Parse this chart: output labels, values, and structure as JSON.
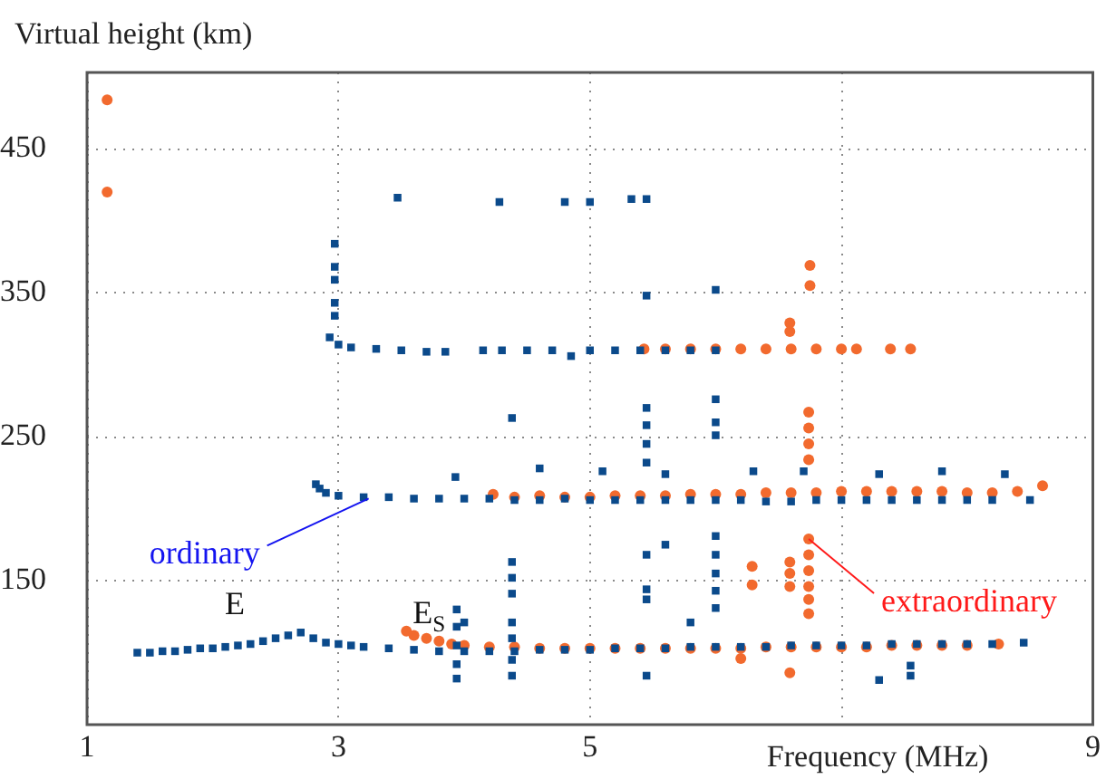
{
  "chart_data": {
    "type": "scatter",
    "xlabel": "Frequency (MHz)",
    "ylabel": "Virtual height (km)",
    "xlim": [
      1,
      9
    ],
    "xticks": [
      1,
      3,
      5,
      {
        "value": 7,
        "label": null
      },
      9
    ],
    "ylim": [
      50,
      503
    ],
    "yticks": [
      150,
      250,
      350,
      450
    ],
    "grid": true,
    "legend": false,
    "annotations": [
      {
        "text": "ordinary",
        "x": 3.24,
        "y": 207
      },
      {
        "text": "extraordinary",
        "x": 6.74,
        "y": 179
      },
      "E",
      "E$_{S}$"
    ],
    "series": [
      {
        "color": "#0b4a8b",
        "marker": "square",
        "x": [
          1.4,
          1.5,
          1.6,
          1.7,
          1.8,
          1.9,
          2.0,
          2.1,
          2.2,
          2.3,
          2.4,
          2.5,
          2.6,
          2.7,
          2.8,
          2.9,
          3.0,
          3.1,
          3.2,
          3.4,
          3.6,
          3.8,
          4.0,
          4.2,
          4.4,
          4.6,
          4.8,
          5.0,
          5.2,
          5.4,
          5.6,
          5.8,
          6.0,
          6.2,
          6.4,
          6.6,
          6.8,
          7.0,
          7.2,
          7.4,
          7.6,
          7.8,
          8.0,
          8.2,
          8.45,
          3.94,
          3.94,
          3.94,
          3.94,
          3.94,
          4.0,
          4.38,
          4.38,
          4.38,
          4.38,
          5.45,
          7.3,
          7.55,
          7.55,
          5.8,
          4.38,
          4.38,
          4.38,
          5.45,
          5.45,
          5.45,
          5.6,
          6.0,
          6.0,
          6.0,
          6.0,
          6.0,
          2.82,
          2.85,
          2.9,
          3.0,
          3.2,
          3.4,
          3.6,
          3.8,
          4.0,
          4.2,
          4.4,
          4.6,
          4.8,
          5.0,
          5.2,
          5.4,
          5.6,
          5.8,
          6.0,
          6.2,
          6.4,
          6.6,
          6.8,
          7.0,
          7.2,
          7.4,
          7.6,
          7.8,
          8.0,
          8.2,
          8.5,
          3.93,
          4.6,
          5.1,
          5.6,
          6.3,
          6.7,
          7.3,
          7.8,
          8.3,
          4.38,
          5.45,
          5.45,
          5.45,
          5.45,
          6.0,
          6.0,
          6.0,
          2.93,
          3.0,
          3.1,
          3.3,
          3.5,
          3.7,
          3.85,
          4.15,
          4.3,
          4.5,
          4.7,
          4.85,
          5.0,
          5.2,
          5.4,
          5.6,
          5.8,
          6.0,
          2.97,
          2.97,
          2.97,
          2.97,
          2.97,
          5.45,
          6.0,
          3.47,
          4.28,
          4.8,
          5.0,
          5.33,
          5.45
        ],
        "values": [
          100,
          100,
          101,
          101,
          102,
          103,
          103,
          104,
          105,
          106,
          108,
          110,
          112,
          114,
          110,
          107,
          106,
          105,
          104,
          103,
          102,
          101,
          101,
          101,
          101,
          102,
          102,
          102,
          103,
          103,
          103,
          104,
          104,
          104,
          104,
          105,
          105,
          105,
          105,
          106,
          106,
          106,
          106,
          106,
          107,
          130,
          118,
          105,
          92,
          82,
          121,
          121,
          110,
          95,
          84,
          84,
          81,
          91,
          84,
          121,
          163,
          152,
          141,
          168,
          144,
          137,
          175,
          181,
          168,
          155,
          143,
          131,
          217,
          214,
          211,
          209,
          208,
          208,
          207,
          207,
          207,
          207,
          206,
          206,
          207,
          206,
          206,
          206,
          206,
          206,
          206,
          206,
          205,
          205,
          206,
          206,
          206,
          206,
          206,
          206,
          206,
          206,
          206,
          222,
          228,
          226,
          224,
          226,
          226,
          224,
          226,
          224,
          263,
          270,
          258,
          245,
          232,
          276,
          260,
          251,
          319,
          314,
          312,
          311,
          310,
          309,
          309,
          310,
          310,
          310,
          310,
          306,
          310,
          310,
          310,
          310,
          310,
          310,
          334,
          343,
          359,
          368,
          384,
          348,
          352,
          416,
          413,
          413,
          413,
          415,
          415
        ]
      },
      {
        "color": "#f26a2e",
        "marker": "circle",
        "x": [
          1.16,
          1.16,
          3.54,
          3.6,
          3.7,
          3.8,
          3.9,
          4.0,
          4.2,
          4.4,
          4.6,
          4.8,
          5.0,
          5.2,
          5.4,
          5.6,
          5.8,
          6.0,
          6.2,
          6.4,
          6.6,
          6.8,
          7.0,
          7.2,
          7.4,
          7.6,
          7.8,
          8.0,
          8.25,
          6.59,
          6.2,
          6.74,
          6.74,
          6.74,
          6.74,
          6.74,
          6.74,
          6.59,
          6.59,
          6.59,
          6.29,
          6.29,
          4.23,
          4.4,
          4.6,
          4.8,
          5.0,
          5.2,
          5.4,
          5.6,
          5.8,
          6.0,
          6.2,
          6.4,
          6.6,
          6.8,
          7.0,
          7.2,
          7.4,
          7.6,
          7.8,
          8.0,
          8.2,
          8.4,
          8.6,
          6.74,
          6.74,
          6.74,
          6.74,
          5.43,
          5.6,
          5.8,
          6.0,
          6.2,
          6.4,
          6.6,
          6.8,
          7.0,
          7.12,
          7.39,
          7.55,
          6.59,
          6.59,
          6.75,
          6.75
        ],
        "values": [
          484,
          420,
          115,
          112,
          110,
          108,
          106,
          105,
          104,
          104,
          103,
          103,
          103,
          103,
          103,
          103,
          103,
          103,
          103,
          104,
          104,
          104,
          104,
          104,
          105,
          105,
          105,
          105,
          106,
          86,
          96,
          179,
          168,
          157,
          146,
          137,
          127,
          163,
          155,
          146,
          160,
          147,
          210,
          208,
          209,
          208,
          208,
          209,
          209,
          209,
          210,
          210,
          210,
          211,
          211,
          211,
          212,
          212,
          212,
          212,
          212,
          211,
          211,
          212,
          216,
          234,
          245,
          256,
          267,
          311,
          311,
          311,
          311,
          311,
          311,
          311,
          311,
          311,
          311,
          311,
          311,
          323,
          329,
          355,
          369
        ]
      }
    ]
  }
}
